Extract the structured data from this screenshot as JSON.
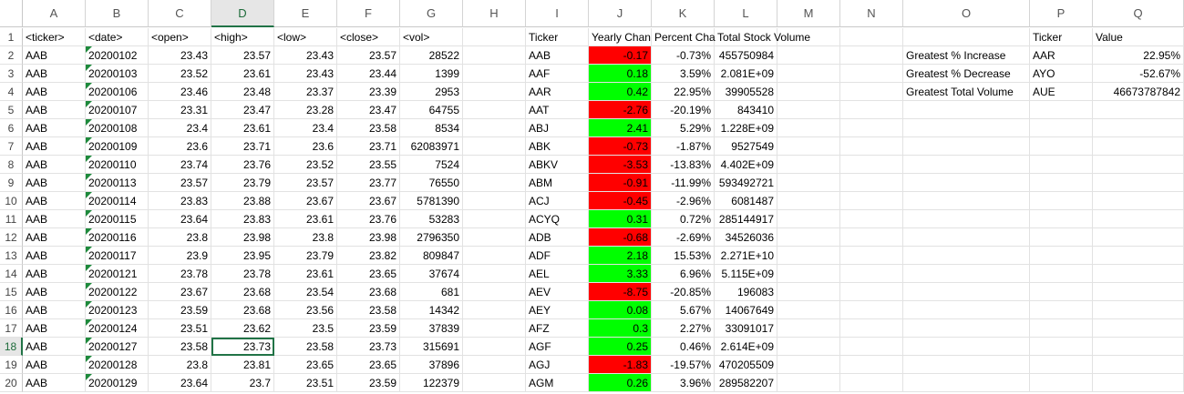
{
  "columns": [
    "A",
    "B",
    "C",
    "D",
    "E",
    "F",
    "G",
    "H",
    "I",
    "J",
    "K",
    "L",
    "M",
    "N",
    "O",
    "P",
    "Q"
  ],
  "selected_column": "D",
  "selected_row": 18,
  "rows": [
    {
      "n": "1",
      "A": "<ticker>",
      "B": "<date>",
      "C": "<open>",
      "D": "<high>",
      "E": "<low>",
      "F": "<close>",
      "G": "<vol>",
      "I": "Ticker",
      "J": "Yearly Chan",
      "K": "Percent Cha",
      "L": "Total Stock Volume",
      "O": "",
      "P": "Ticker",
      "Q": "Value"
    },
    {
      "n": "2",
      "A": "AAB",
      "B": "20200102",
      "C": "23.43",
      "D": "23.57",
      "E": "23.43",
      "F": "23.57",
      "G": "28522",
      "I": "AAB",
      "J": "-0.17",
      "K": "-0.73%",
      "L": "455750984",
      "O": "Greatest % Increase",
      "P": "AAR",
      "Q": "22.95%"
    },
    {
      "n": "3",
      "A": "AAB",
      "B": "20200103",
      "C": "23.52",
      "D": "23.61",
      "E": "23.43",
      "F": "23.44",
      "G": "1399",
      "I": "AAF",
      "J": "0.18",
      "K": "3.59%",
      "L": "2.081E+09",
      "O": "Greatest % Decrease",
      "P": "AYO",
      "Q": "-52.67%"
    },
    {
      "n": "4",
      "A": "AAB",
      "B": "20200106",
      "C": "23.46",
      "D": "23.48",
      "E": "23.37",
      "F": "23.39",
      "G": "2953",
      "I": "AAR",
      "J": "0.42",
      "K": "22.95%",
      "L": "39905528",
      "O": "Greatest Total Volume",
      "P": "AUE",
      "Q": "46673787842"
    },
    {
      "n": "5",
      "A": "AAB",
      "B": "20200107",
      "C": "23.31",
      "D": "23.47",
      "E": "23.28",
      "F": "23.47",
      "G": "64755",
      "I": "AAT",
      "J": "-2.76",
      "K": "-20.19%",
      "L": "843410"
    },
    {
      "n": "6",
      "A": "AAB",
      "B": "20200108",
      "C": "23.4",
      "D": "23.61",
      "E": "23.4",
      "F": "23.58",
      "G": "8534",
      "I": "ABJ",
      "J": "2.41",
      "K": "5.29%",
      "L": "1.228E+09"
    },
    {
      "n": "7",
      "A": "AAB",
      "B": "20200109",
      "C": "23.6",
      "D": "23.71",
      "E": "23.6",
      "F": "23.71",
      "G": "62083971",
      "I": "ABK",
      "J": "-0.73",
      "K": "-1.87%",
      "L": "9527549"
    },
    {
      "n": "8",
      "A": "AAB",
      "B": "20200110",
      "C": "23.74",
      "D": "23.76",
      "E": "23.52",
      "F": "23.55",
      "G": "7524",
      "I": "ABKV",
      "J": "-3.53",
      "K": "-13.83%",
      "L": "4.402E+09"
    },
    {
      "n": "9",
      "A": "AAB",
      "B": "20200113",
      "C": "23.57",
      "D": "23.79",
      "E": "23.57",
      "F": "23.77",
      "G": "76550",
      "I": "ABM",
      "J": "-0.91",
      "K": "-11.99%",
      "L": "593492721"
    },
    {
      "n": "10",
      "A": "AAB",
      "B": "20200114",
      "C": "23.83",
      "D": "23.88",
      "E": "23.67",
      "F": "23.67",
      "G": "5781390",
      "I": "ACJ",
      "J": "-0.45",
      "K": "-2.96%",
      "L": "6081487"
    },
    {
      "n": "11",
      "A": "AAB",
      "B": "20200115",
      "C": "23.64",
      "D": "23.83",
      "E": "23.61",
      "F": "23.76",
      "G": "53283",
      "I": "ACYQ",
      "J": "0.31",
      "K": "0.72%",
      "L": "285144917"
    },
    {
      "n": "12",
      "A": "AAB",
      "B": "20200116",
      "C": "23.8",
      "D": "23.98",
      "E": "23.8",
      "F": "23.98",
      "G": "2796350",
      "I": "ADB",
      "J": "-0.68",
      "K": "-2.69%",
      "L": "34526036"
    },
    {
      "n": "13",
      "A": "AAB",
      "B": "20200117",
      "C": "23.9",
      "D": "23.95",
      "E": "23.79",
      "F": "23.82",
      "G": "809847",
      "I": "ADF",
      "J": "2.18",
      "K": "15.53%",
      "L": "2.271E+10"
    },
    {
      "n": "14",
      "A": "AAB",
      "B": "20200121",
      "C": "23.78",
      "D": "23.78",
      "E": "23.61",
      "F": "23.65",
      "G": "37674",
      "I": "AEL",
      "J": "3.33",
      "K": "6.96%",
      "L": "5.115E+09"
    },
    {
      "n": "15",
      "A": "AAB",
      "B": "20200122",
      "C": "23.67",
      "D": "23.68",
      "E": "23.54",
      "F": "23.68",
      "G": "681",
      "I": "AEV",
      "J": "-8.75",
      "K": "-20.85%",
      "L": "196083"
    },
    {
      "n": "16",
      "A": "AAB",
      "B": "20200123",
      "C": "23.59",
      "D": "23.68",
      "E": "23.56",
      "F": "23.58",
      "G": "14342",
      "I": "AEY",
      "J": "0.08",
      "K": "5.67%",
      "L": "14067649"
    },
    {
      "n": "17",
      "A": "AAB",
      "B": "20200124",
      "C": "23.51",
      "D": "23.62",
      "E": "23.5",
      "F": "23.59",
      "G": "37839",
      "I": "AFZ",
      "J": "0.3",
      "K": "2.27%",
      "L": "33091017"
    },
    {
      "n": "18",
      "A": "AAB",
      "B": "20200127",
      "C": "23.58",
      "D": "23.73",
      "E": "23.58",
      "F": "23.73",
      "G": "315691",
      "I": "AGF",
      "J": "0.25",
      "K": "0.46%",
      "L": "2.614E+09"
    },
    {
      "n": "19",
      "A": "AAB",
      "B": "20200128",
      "C": "23.8",
      "D": "23.81",
      "E": "23.65",
      "F": "23.65",
      "G": "37896",
      "I": "AGJ",
      "J": "-1.83",
      "K": "-19.57%",
      "L": "470205509"
    },
    {
      "n": "20",
      "A": "AAB",
      "B": "20200129",
      "C": "23.64",
      "D": "23.7",
      "E": "23.51",
      "F": "23.59",
      "G": "122379",
      "I": "AGM",
      "J": "0.26",
      "K": "3.96%",
      "L": "289582207"
    }
  ],
  "colors": {
    "positive_fill": "#00ff00",
    "negative_fill": "#ff0000",
    "selection": "#217346",
    "text_error_marker": "#1e8a3c"
  }
}
